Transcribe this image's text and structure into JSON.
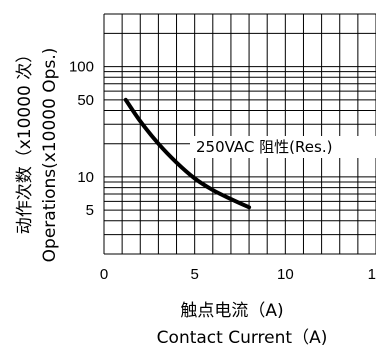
{
  "chart_data": {
    "type": "line",
    "title": "",
    "x_scale": "linear",
    "y_scale": "log",
    "xlim": [
      0,
      15
    ],
    "ylim": [
      2,
      300
    ],
    "x_ticks": [
      {
        "value": 0,
        "label": "0"
      },
      {
        "value": 5,
        "label": "5"
      },
      {
        "value": 10,
        "label": "10"
      },
      {
        "value": 15,
        "label": "15"
      }
    ],
    "y_ticks": [
      {
        "value": 5,
        "label": "5"
      },
      {
        "value": 10,
        "label": "10"
      },
      {
        "value": 50,
        "label": "50"
      },
      {
        "value": 100,
        "label": "100"
      }
    ],
    "xlabel": {
      "line1": "触点电流（A)",
      "line2": "Contact Current（A)"
    },
    "ylabel": {
      "line1": "动作次数（x10000 次）",
      "line2": "Operations(x10000 Ops.)"
    },
    "grid": true,
    "series": [
      {
        "annotation": "250VAC 阻性(Res.)",
        "x": [
          1.2,
          2.0,
          3.0,
          4.0,
          5.0,
          6.0,
          7.0,
          8.0
        ],
        "y": [
          50,
          32,
          20,
          13.5,
          9.7,
          7.6,
          6.3,
          5.3
        ]
      }
    ]
  },
  "colors": {
    "grid": "#000000",
    "line": "#000000",
    "annotation_bg": "#ffffff"
  }
}
